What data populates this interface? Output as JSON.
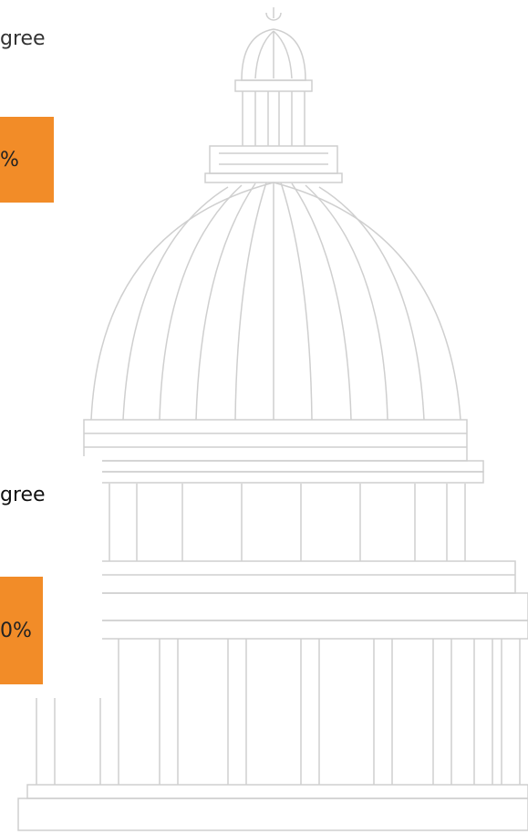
{
  "sections": [
    {
      "label": "gree",
      "value": "%"
    },
    {
      "label": "gree",
      "value": "0%"
    }
  ]
}
